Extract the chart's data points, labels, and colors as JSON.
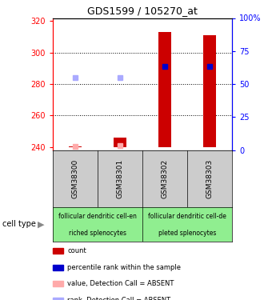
{
  "title": "GDS1599 / 105270_at",
  "samples": [
    "GSM38300",
    "GSM38301",
    "GSM38302",
    "GSM38303"
  ],
  "ylim_left": [
    238,
    322
  ],
  "yticks_left": [
    240,
    260,
    280,
    300,
    320
  ],
  "yticks_right": [
    0,
    25,
    50,
    75,
    100
  ],
  "ytick_labels_right": [
    "0",
    "25",
    "50",
    "75",
    "100%"
  ],
  "baseline": 240,
  "red_bar_tops": [
    240.5,
    246,
    313,
    311
  ],
  "blue_marker_y": [
    null,
    null,
    291,
    291
  ],
  "blue_marker_y_absent": [
    284,
    284,
    null,
    null
  ],
  "pink_marker_y": [
    240.5,
    241,
    null,
    null
  ],
  "cell_type_labels": [
    "follicular dendritic cell-en",
    "follicular dendritic cell-de"
  ],
  "cell_type_sublabels": [
    "riched splenocytes",
    "pleted splenocytes"
  ],
  "legend_items": [
    {
      "color": "#cc0000",
      "label": "count"
    },
    {
      "color": "#0000cc",
      "label": "percentile rank within the sample"
    },
    {
      "color": "#ffaaaa",
      "label": "value, Detection Call = ABSENT"
    },
    {
      "color": "#aaaaff",
      "label": "rank, Detection Call = ABSENT"
    }
  ],
  "bar_color": "#cc0000",
  "blue_marker_color": "#0000cc",
  "absent_value_color": "#ffaaaa",
  "absent_rank_color": "#aaaaff",
  "sample_area_bg": "#cccccc",
  "cell_type_bg": "#90ee90"
}
